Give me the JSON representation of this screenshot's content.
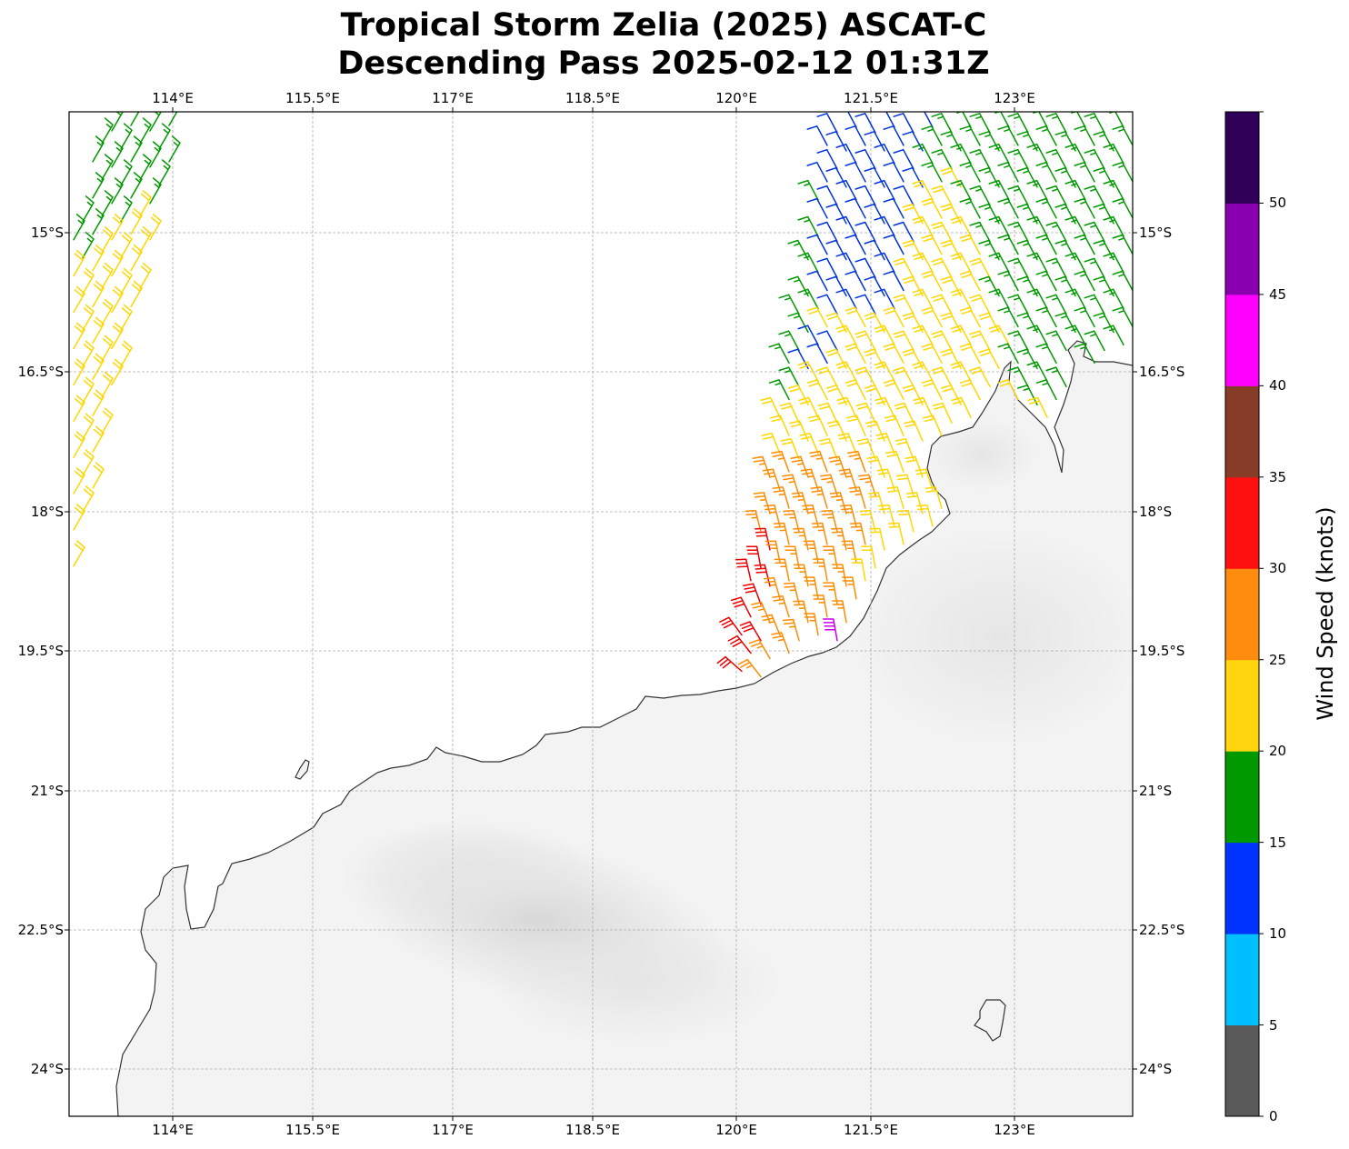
{
  "title": {
    "line1": "Tropical Storm Zelia (2025) ASCAT-C",
    "line2": "Descending Pass 2025-02-12 01:31Z"
  },
  "axes": {
    "lon_labels": [
      "114°E",
      "115.5°E",
      "117°E",
      "118.5°E",
      "120°E",
      "121.5°E",
      "123°E"
    ],
    "lat_labels": [
      "15°S",
      "16.5°S",
      "18°S",
      "19.5°S",
      "21°S",
      "22.5°S",
      "24°S"
    ]
  },
  "colorbar": {
    "label": "Wind Speed (knots)",
    "ticks": [
      "0",
      "5",
      "10",
      "15",
      "20",
      "25",
      "30",
      "35",
      "40",
      "45",
      "50"
    ],
    "bounds": [
      0,
      5,
      10,
      15,
      20,
      25,
      30,
      35,
      40,
      45,
      50,
      55
    ],
    "colors": [
      "#595959",
      "#00bfff",
      "#0033ff",
      "#009900",
      "#ffd50f",
      "#ff8c0f",
      "#ff1010",
      "#873c28",
      "#ff00ff",
      "#8800b0",
      "#2e0058"
    ]
  },
  "wind_colors": {
    "blue": "#0033dd",
    "green": "#009900",
    "yellow": "#ffd700",
    "orange": "#ff8c00",
    "red": "#ee0000",
    "magenta": "#cc00ee"
  }
}
